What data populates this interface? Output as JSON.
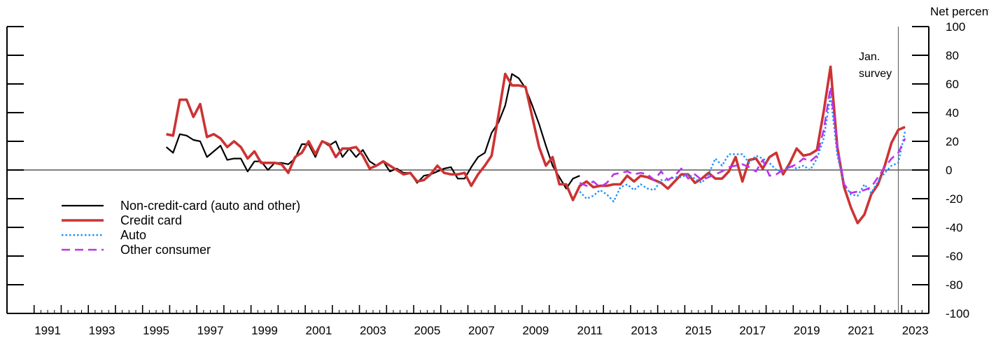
{
  "chart_data": {
    "type": "line",
    "title": "",
    "xlabel": "",
    "ylabel": "Net percent",
    "xlim": [
      1990.0,
      2024.0
    ],
    "ylim": [
      -100,
      100
    ],
    "y_ticks": [
      -100,
      -80,
      -60,
      -40,
      -20,
      0,
      20,
      40,
      60,
      80,
      100
    ],
    "x_tick_labels": [
      "1991",
      "1993",
      "1995",
      "1997",
      "1999",
      "2001",
      "2003",
      "2005",
      "2007",
      "2009",
      "2011",
      "2013",
      "2015",
      "2017",
      "2019",
      "2021",
      "2023"
    ],
    "annotation": {
      "text_line1": "Jan.",
      "text_line2": "survey",
      "x": 2022.875
    },
    "legend_position": "left",
    "grid": false,
    "series": [
      {
        "name": "Non-credit-card (auto and other)",
        "color": "#000000",
        "style": "solid",
        "points": [
          [
            1995.875,
            16
          ],
          [
            1996.125,
            12
          ],
          [
            1996.375,
            25
          ],
          [
            1996.625,
            24
          ],
          [
            1996.875,
            21
          ],
          [
            1997.125,
            20
          ],
          [
            1997.375,
            9
          ],
          [
            1997.625,
            13
          ],
          [
            1997.875,
            17
          ],
          [
            1998.125,
            7
          ],
          [
            1998.375,
            8
          ],
          [
            1998.625,
            8
          ],
          [
            1998.875,
            -1
          ],
          [
            1999.125,
            6
          ],
          [
            1999.375,
            6
          ],
          [
            1999.625,
            0
          ],
          [
            1999.875,
            5
          ],
          [
            2000.125,
            5
          ],
          [
            2000.375,
            4
          ],
          [
            2000.625,
            8
          ],
          [
            2000.875,
            18
          ],
          [
            2001.125,
            18
          ],
          [
            2001.375,
            9
          ],
          [
            2001.625,
            20
          ],
          [
            2001.875,
            17
          ],
          [
            2002.125,
            20
          ],
          [
            2002.375,
            9
          ],
          [
            2002.625,
            15
          ],
          [
            2002.875,
            9
          ],
          [
            2003.125,
            14
          ],
          [
            2003.375,
            6
          ],
          [
            2003.625,
            3
          ],
          [
            2003.875,
            6
          ],
          [
            2004.125,
            -1
          ],
          [
            2004.375,
            1
          ],
          [
            2004.625,
            -2
          ],
          [
            2004.875,
            -2
          ],
          [
            2005.125,
            -9
          ],
          [
            2005.375,
            -4
          ],
          [
            2005.625,
            -3
          ],
          [
            2005.875,
            -1
          ],
          [
            2006.125,
            1
          ],
          [
            2006.375,
            2
          ],
          [
            2006.625,
            -6
          ],
          [
            2006.875,
            -6
          ],
          [
            2007.125,
            2
          ],
          [
            2007.375,
            9
          ],
          [
            2007.625,
            12
          ],
          [
            2007.875,
            26
          ],
          [
            2008.125,
            33
          ],
          [
            2008.375,
            45
          ],
          [
            2008.625,
            67
          ],
          [
            2008.875,
            64
          ],
          [
            2009.125,
            57
          ],
          [
            2009.375,
            45
          ],
          [
            2009.625,
            32
          ],
          [
            2009.875,
            17
          ],
          [
            2010.125,
            3
          ],
          [
            2010.375,
            -5
          ],
          [
            2010.625,
            -13
          ],
          [
            2010.875,
            -6
          ],
          [
            2011.125,
            -4
          ]
        ]
      },
      {
        "name": "Credit card",
        "color": "#cc3333",
        "style": "solid",
        "points": [
          [
            1995.875,
            25
          ],
          [
            1996.125,
            24
          ],
          [
            1996.375,
            49
          ],
          [
            1996.625,
            49
          ],
          [
            1996.875,
            37
          ],
          [
            1997.125,
            46
          ],
          [
            1997.375,
            23
          ],
          [
            1997.625,
            25
          ],
          [
            1997.875,
            22
          ],
          [
            1998.125,
            16
          ],
          [
            1998.375,
            20
          ],
          [
            1998.625,
            16
          ],
          [
            1998.875,
            8
          ],
          [
            1999.125,
            13
          ],
          [
            1999.375,
            5
          ],
          [
            1999.625,
            5
          ],
          [
            1999.875,
            5
          ],
          [
            2000.125,
            4
          ],
          [
            2000.375,
            -2
          ],
          [
            2000.625,
            9
          ],
          [
            2000.875,
            12
          ],
          [
            2001.125,
            20
          ],
          [
            2001.375,
            11
          ],
          [
            2001.625,
            20
          ],
          [
            2001.875,
            18
          ],
          [
            2002.125,
            9
          ],
          [
            2002.375,
            15
          ],
          [
            2002.625,
            15
          ],
          [
            2002.875,
            16
          ],
          [
            2003.125,
            10
          ],
          [
            2003.375,
            1
          ],
          [
            2003.625,
            3
          ],
          [
            2003.875,
            6
          ],
          [
            2004.125,
            3
          ],
          [
            2004.375,
            0
          ],
          [
            2004.625,
            -3
          ],
          [
            2004.875,
            -2
          ],
          [
            2005.125,
            -8
          ],
          [
            2005.375,
            -7
          ],
          [
            2005.625,
            -3
          ],
          [
            2005.875,
            3
          ],
          [
            2006.125,
            -2
          ],
          [
            2006.375,
            -3
          ],
          [
            2006.625,
            -3
          ],
          [
            2006.875,
            -2
          ],
          [
            2007.125,
            -11
          ],
          [
            2007.375,
            -3
          ],
          [
            2007.625,
            3
          ],
          [
            2007.875,
            10
          ],
          [
            2008.125,
            38
          ],
          [
            2008.375,
            67
          ],
          [
            2008.625,
            59
          ],
          [
            2008.875,
            59
          ],
          [
            2009.125,
            58
          ],
          [
            2009.375,
            37
          ],
          [
            2009.625,
            16
          ],
          [
            2009.875,
            3
          ],
          [
            2010.125,
            9
          ],
          [
            2010.375,
            -10
          ],
          [
            2010.625,
            -10
          ],
          [
            2010.875,
            -21
          ],
          [
            2011.125,
            -11
          ],
          [
            2011.375,
            -8
          ],
          [
            2011.625,
            -12
          ],
          [
            2011.875,
            -11
          ],
          [
            2012.125,
            -11
          ],
          [
            2012.375,
            -10
          ],
          [
            2012.625,
            -10
          ],
          [
            2012.875,
            -4
          ],
          [
            2013.125,
            -8
          ],
          [
            2013.375,
            -4
          ],
          [
            2013.625,
            -5
          ],
          [
            2013.875,
            -7
          ],
          [
            2014.125,
            -9
          ],
          [
            2014.375,
            -13
          ],
          [
            2014.625,
            -8
          ],
          [
            2014.875,
            -3
          ],
          [
            2015.125,
            -3
          ],
          [
            2015.375,
            -9
          ],
          [
            2015.625,
            -6
          ],
          [
            2015.875,
            -2
          ],
          [
            2016.125,
            -6
          ],
          [
            2016.375,
            -6
          ],
          [
            2016.625,
            -1
          ],
          [
            2016.875,
            9
          ],
          [
            2017.125,
            -8
          ],
          [
            2017.375,
            7
          ],
          [
            2017.625,
            8
          ],
          [
            2017.875,
            1
          ],
          [
            2018.125,
            9
          ],
          [
            2018.375,
            12
          ],
          [
            2018.625,
            -3
          ],
          [
            2018.875,
            5
          ],
          [
            2019.125,
            15
          ],
          [
            2019.375,
            10
          ],
          [
            2019.625,
            11
          ],
          [
            2019.875,
            14
          ],
          [
            2020.125,
            41
          ],
          [
            2020.375,
            72
          ],
          [
            2020.625,
            16
          ],
          [
            2020.875,
            -12
          ],
          [
            2021.125,
            -26
          ],
          [
            2021.375,
            -37
          ],
          [
            2021.625,
            -31
          ],
          [
            2021.875,
            -17
          ],
          [
            2022.125,
            -10
          ],
          [
            2022.375,
            3
          ],
          [
            2022.625,
            19
          ],
          [
            2022.875,
            28
          ],
          [
            2023.125,
            30
          ]
        ]
      },
      {
        "name": "Auto",
        "color": "#1e90ff",
        "style": "dotted",
        "points": [
          [
            2011.125,
            -15
          ],
          [
            2011.375,
            -20
          ],
          [
            2011.625,
            -18
          ],
          [
            2011.875,
            -14
          ],
          [
            2012.125,
            -17
          ],
          [
            2012.375,
            -22
          ],
          [
            2012.625,
            -12
          ],
          [
            2012.875,
            -10
          ],
          [
            2013.125,
            -14
          ],
          [
            2013.375,
            -10
          ],
          [
            2013.625,
            -13
          ],
          [
            2013.875,
            -14
          ],
          [
            2014.125,
            -7
          ],
          [
            2014.375,
            -7
          ],
          [
            2014.625,
            -5
          ],
          [
            2014.875,
            -5
          ],
          [
            2015.125,
            -3
          ],
          [
            2015.375,
            -6
          ],
          [
            2015.625,
            -9
          ],
          [
            2015.875,
            -3
          ],
          [
            2016.125,
            8
          ],
          [
            2016.375,
            3
          ],
          [
            2016.625,
            11
          ],
          [
            2016.875,
            11
          ],
          [
            2017.125,
            11
          ],
          [
            2017.375,
            5
          ],
          [
            2017.625,
            10
          ],
          [
            2017.875,
            8
          ],
          [
            2018.125,
            5
          ],
          [
            2018.375,
            0
          ],
          [
            2018.625,
            -1
          ],
          [
            2018.875,
            3
          ],
          [
            2019.125,
            1
          ],
          [
            2019.375,
            3
          ],
          [
            2019.625,
            0
          ],
          [
            2019.875,
            8
          ],
          [
            2020.125,
            22
          ],
          [
            2020.375,
            52
          ],
          [
            2020.625,
            10
          ],
          [
            2020.875,
            -10
          ],
          [
            2021.125,
            -17
          ],
          [
            2021.375,
            -18
          ],
          [
            2021.625,
            -10
          ],
          [
            2021.875,
            -16
          ],
          [
            2022.125,
            -8
          ],
          [
            2022.375,
            -2
          ],
          [
            2022.625,
            3
          ],
          [
            2022.875,
            5
          ],
          [
            2023.125,
            27
          ]
        ]
      },
      {
        "name": "Other consumer",
        "color": "#bb33ee",
        "style": "dashed",
        "points": [
          [
            2011.125,
            -9
          ],
          [
            2011.375,
            -11
          ],
          [
            2011.625,
            -8
          ],
          [
            2011.875,
            -12
          ],
          [
            2012.125,
            -9
          ],
          [
            2012.375,
            -3
          ],
          [
            2012.625,
            -2
          ],
          [
            2012.875,
            -1
          ],
          [
            2013.125,
            -3
          ],
          [
            2013.375,
            -2
          ],
          [
            2013.625,
            -3
          ],
          [
            2013.875,
            -7
          ],
          [
            2014.125,
            -1
          ],
          [
            2014.375,
            -7
          ],
          [
            2014.625,
            -4
          ],
          [
            2014.875,
            1
          ],
          [
            2015.125,
            -6
          ],
          [
            2015.375,
            -3
          ],
          [
            2015.625,
            -7
          ],
          [
            2015.875,
            -5
          ],
          [
            2016.125,
            -3
          ],
          [
            2016.375,
            -1
          ],
          [
            2016.625,
            2
          ],
          [
            2016.875,
            3
          ],
          [
            2017.125,
            4
          ],
          [
            2017.375,
            2
          ],
          [
            2017.625,
            -1
          ],
          [
            2017.875,
            7
          ],
          [
            2018.125,
            -4
          ],
          [
            2018.375,
            -3
          ],
          [
            2018.625,
            0
          ],
          [
            2018.875,
            2
          ],
          [
            2019.125,
            4
          ],
          [
            2019.375,
            8
          ],
          [
            2019.625,
            6
          ],
          [
            2019.875,
            10
          ],
          [
            2020.125,
            28
          ],
          [
            2020.375,
            58
          ],
          [
            2020.625,
            17
          ],
          [
            2020.875,
            -10
          ],
          [
            2021.125,
            -16
          ],
          [
            2021.375,
            -15
          ],
          [
            2021.625,
            -14
          ],
          [
            2021.875,
            -12
          ],
          [
            2022.125,
            -5
          ],
          [
            2022.375,
            2
          ],
          [
            2022.625,
            8
          ],
          [
            2022.875,
            12
          ],
          [
            2023.125,
            22
          ]
        ]
      }
    ]
  }
}
